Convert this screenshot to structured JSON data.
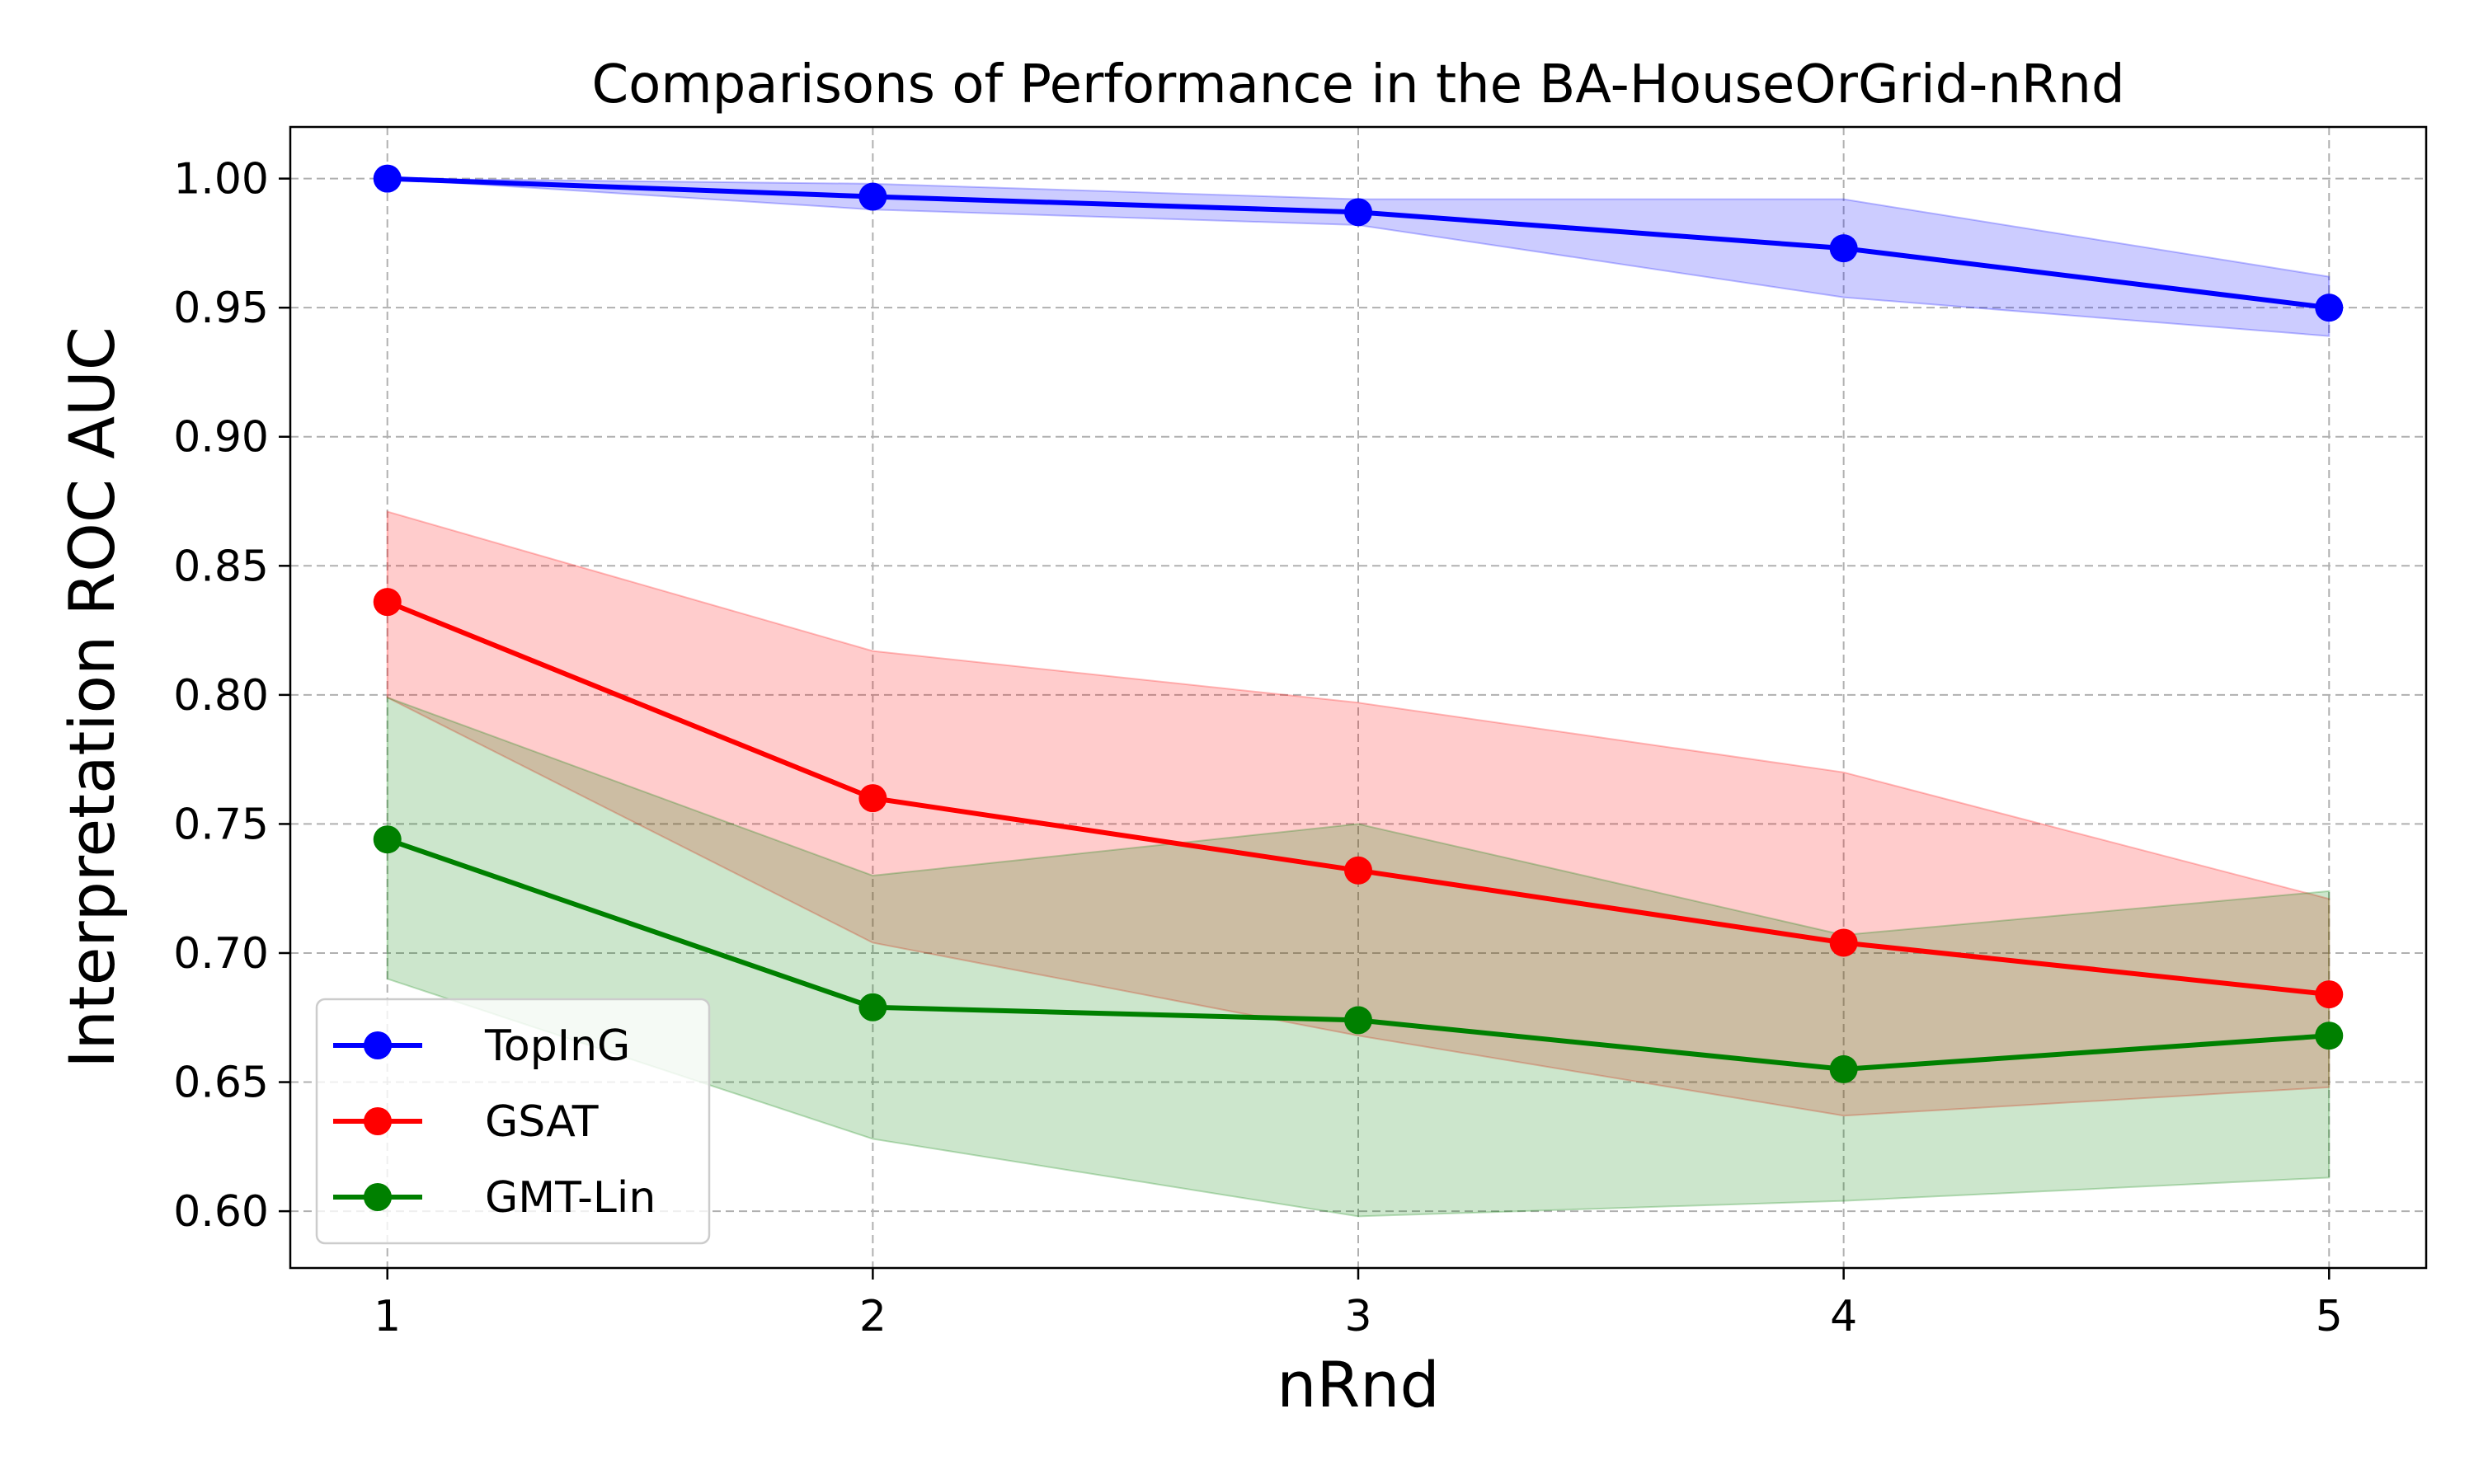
{
  "chart_data": {
    "type": "line",
    "title": "Comparisons of Performance in the BA-HouseOrGrid-nRnd",
    "xlabel": "nRnd",
    "ylabel": "Interpretation ROC AUC",
    "x": [
      1,
      2,
      3,
      4,
      5
    ],
    "x_ticks": [
      "1",
      "2",
      "3",
      "4",
      "5"
    ],
    "y_ticks": [
      "0.60",
      "0.65",
      "0.70",
      "0.75",
      "0.80",
      "0.85",
      "0.90",
      "0.95",
      "1.00"
    ],
    "xlim": [
      0.8,
      5.2
    ],
    "ylim": [
      0.578,
      1.02
    ],
    "grid": true,
    "legend_position": "lower-left",
    "series": [
      {
        "name": "TopInG",
        "color": "#0000ff",
        "values": [
          1.0,
          0.993,
          0.987,
          0.973,
          0.95
        ],
        "upper": [
          1.0,
          0.998,
          0.992,
          0.992,
          0.962
        ],
        "lower": [
          1.0,
          0.988,
          0.982,
          0.954,
          0.939
        ]
      },
      {
        "name": "GSAT",
        "color": "#ff0000",
        "values": [
          0.836,
          0.76,
          0.732,
          0.704,
          0.684
        ],
        "upper": [
          0.871,
          0.817,
          0.797,
          0.77,
          0.721
        ],
        "lower": [
          0.799,
          0.704,
          0.668,
          0.637,
          0.648
        ]
      },
      {
        "name": "GMT-Lin",
        "color": "#008000",
        "values": [
          0.744,
          0.679,
          0.674,
          0.655,
          0.668
        ],
        "upper": [
          0.799,
          0.73,
          0.75,
          0.707,
          0.724
        ],
        "lower": [
          0.69,
          0.628,
          0.598,
          0.604,
          0.613
        ]
      }
    ]
  }
}
